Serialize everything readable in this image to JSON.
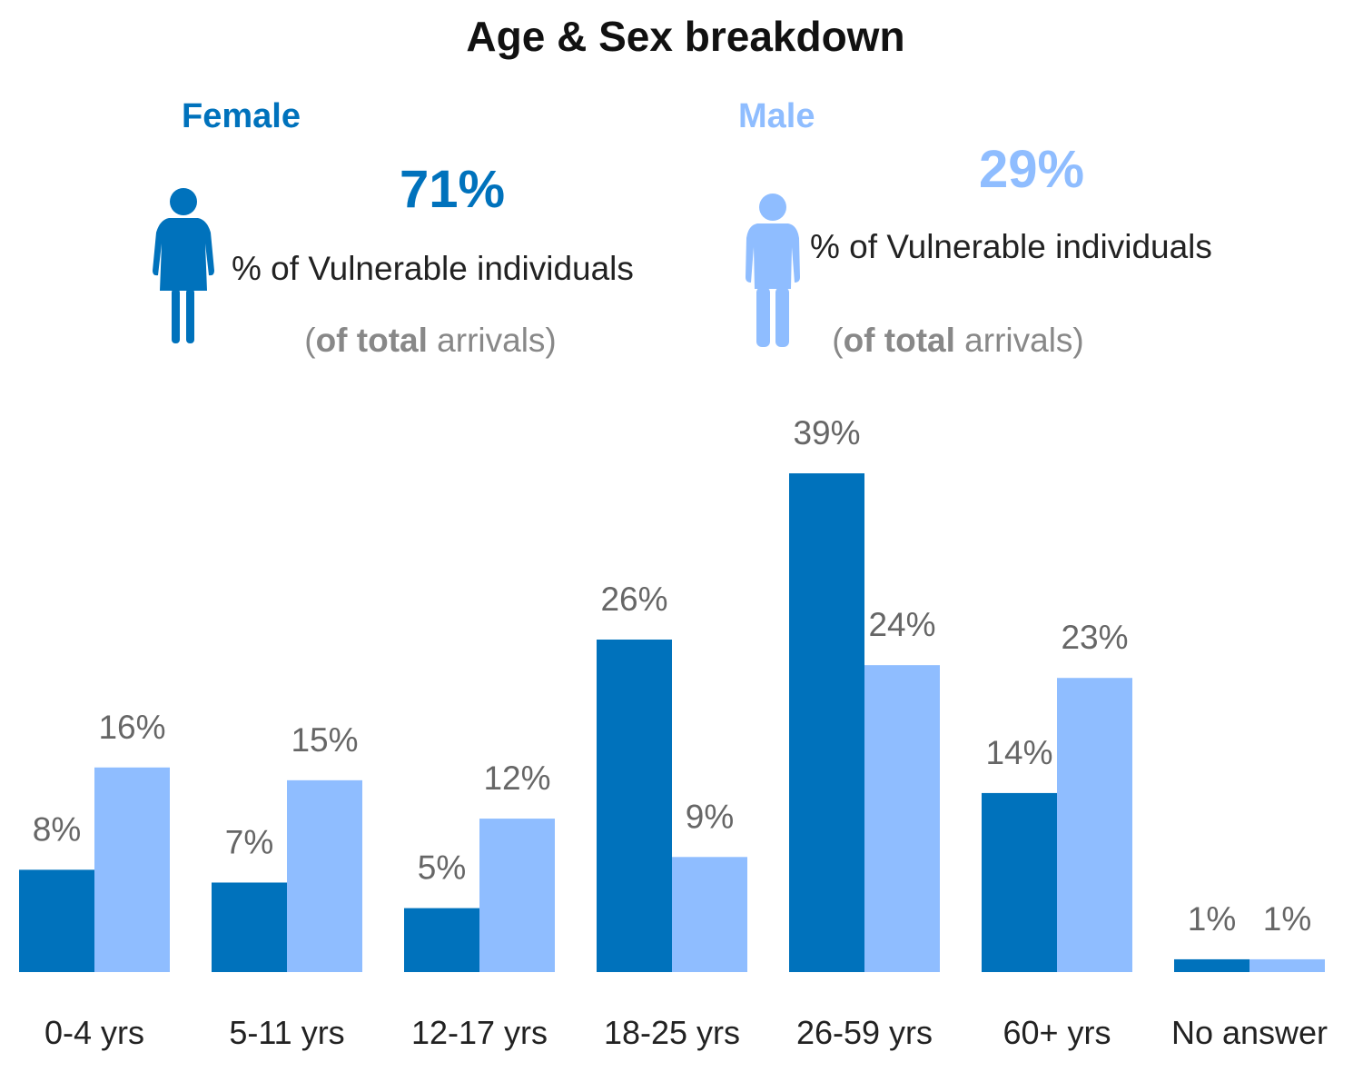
{
  "chart_data": {
    "type": "bar",
    "title": "Age & Sex breakdown",
    "summary": [
      {
        "name": "Female",
        "color": "#0072bc",
        "share": {
          "value": 71,
          "label": "71%"
        },
        "caption": "% of Vulnerable individuals",
        "note": [
          "(",
          "of total",
          " arrivals)"
        ]
      },
      {
        "name": "Male",
        "color": "#8fbdff",
        "share": {
          "value": 29,
          "label": "29%"
        },
        "caption": "% of Vulnerable individuals",
        "note": [
          "(",
          "of total",
          " arrivals)"
        ]
      }
    ],
    "categories": [
      "0-4 yrs",
      "5-11 yrs",
      "12-17 yrs",
      "18-25 yrs",
      "26-59 yrs",
      "60+ yrs",
      "No answer"
    ],
    "series": [
      {
        "name": "Female",
        "color": "#0072bc",
        "values": [
          8,
          7,
          5,
          26,
          39,
          14,
          1
        ],
        "value_labels": [
          "8%",
          "7%",
          "5%",
          "26%",
          "39%",
          "14%",
          "1%"
        ]
      },
      {
        "name": "Male",
        "color": "#8fbdff",
        "values": [
          16,
          15,
          12,
          9,
          24,
          23,
          1
        ],
        "value_labels": [
          "16%",
          "15%",
          "12%",
          "9%",
          "24%",
          "23%",
          "1%"
        ]
      }
    ]
  }
}
